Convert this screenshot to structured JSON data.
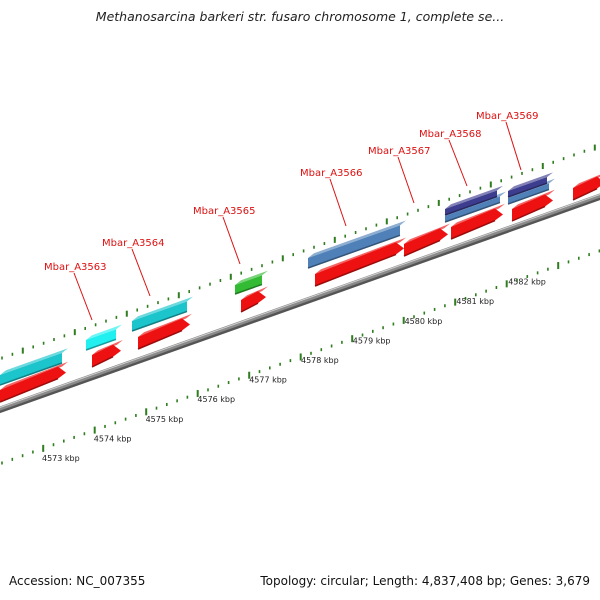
{
  "title": "Methanosarcina barkeri str. fusaro chromosome 1, complete se...",
  "footer": {
    "accession": "Accession: NC_007355",
    "summary": "Topology: circular; Length: 4,837,408 bp; Genes: 3,679"
  },
  "scale_labels": [
    "4573 kbp",
    "4574 kbp",
    "4575 kbp",
    "4576 kbp",
    "4577 kbp",
    "4578 kbp",
    "4579 kbp",
    "4580 kbp",
    "4581 kbp",
    "4582 kbp"
  ],
  "gene_labels": [
    "Mbar_A3563",
    "Mbar_A3564",
    "Mbar_A3565",
    "Mbar_A3566",
    "Mbar_A3567",
    "Mbar_A3568",
    "Mbar_A3569"
  ],
  "colors": {
    "cds": "#ee1111",
    "cyan": "#1cc4cc",
    "bright_cyan": "#22f0f0",
    "green": "#33bb33",
    "steelblue": "#4f81b8",
    "navy": "#3d3d90",
    "backbone": "#8a8a8a",
    "tick": "#2e7d1e",
    "label": "#dd1111"
  }
}
